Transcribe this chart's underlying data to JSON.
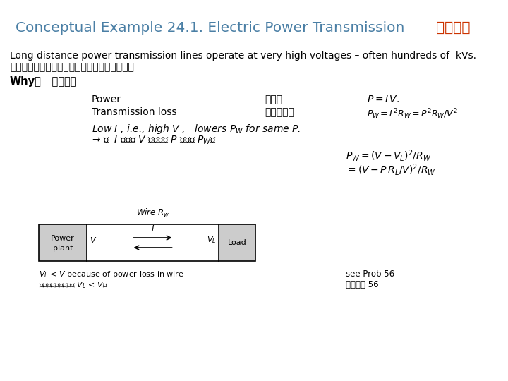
{
  "title_en": "Conceptual Example 24.1. Electric Power Transmission   ",
  "title_zh": "電力輸送",
  "title_color_en": "#4a7fa5",
  "title_color_zh": "#cc3300",
  "bg_color": "#ffffff",
  "line1": "Long distance power transmission lines operate at very high voltages – often hundreds of  kVs.",
  "line2": "長程電力輸送都用很高的電壓－往往幾十萬伏。",
  "why_line_en": "Why？",
  "why_line_zh": "    為甚麼？",
  "power_label": "Power",
  "power_zh": "功率：",
  "power_eq": "$P = I\\,V.$",
  "trans_label": "Transmission loss",
  "trans_zh": "傳輸損耗：",
  "trans_eq": "$P_W = I^{\\,2} R_W = P^2 R_W / V^2$",
  "low_line1": "Low $I$ , i.e., high $V$ ,   lowers $P_W$ for same $P$.",
  "low_line2": "→ 低  $I$ ，即高 $V$ ，可在同 $P$ 下降低 $P_W$。",
  "eq3": "$P_W = (V - V_L)^2 / R_W$",
  "eq4": "$= (V - P\\,R_L / V)^2 / R_W$",
  "note1": "see Prob 56",
  "note2": "參考習題 56",
  "vl_note1": "$V_L$ < $V$ because of power loss in wire",
  "vl_note2": "因線內功率損耗，故 $V_L$ < $V$。",
  "wire_label": "Wire $R_w$",
  "power_plant_line1": "Power",
  "power_plant_line2": "plant",
  "load_label": "Load"
}
